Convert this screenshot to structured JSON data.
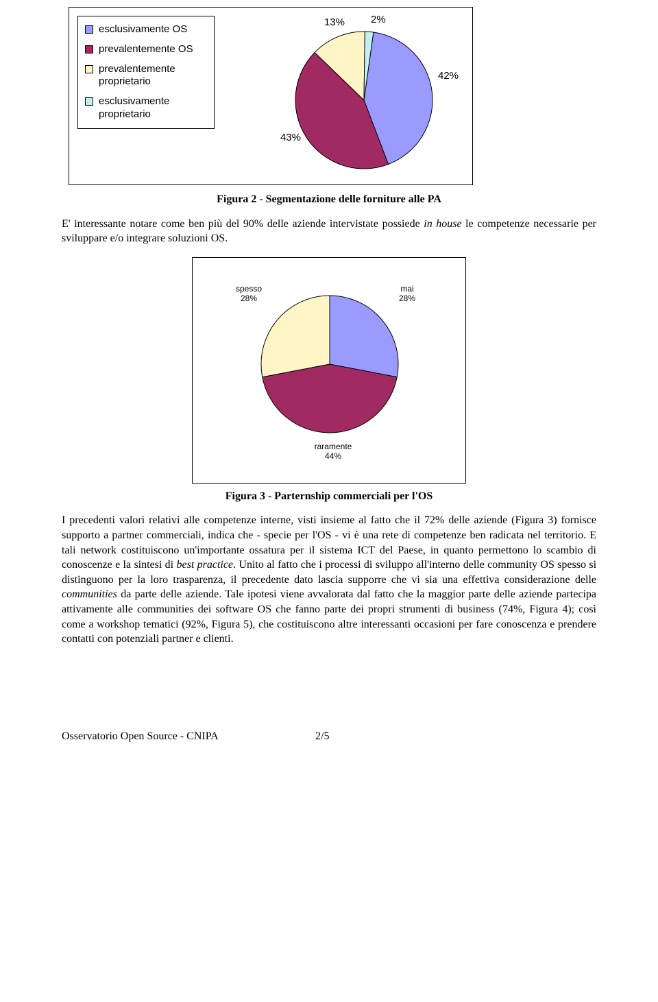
{
  "chart1": {
    "type": "pie",
    "legend": [
      {
        "label": "esclusivamente OS",
        "color": "#9b9bff"
      },
      {
        "label": "prevalentemente OS",
        "color": "#a12a63"
      },
      {
        "label": "prevalentemente proprietario",
        "color": "#fff5c6"
      },
      {
        "label": "esclusivamente proprietario",
        "color": "#c6f0f0"
      }
    ],
    "annotations": {
      "p13": "13%",
      "p2": "2%",
      "p42": "42%",
      "p43": "43%"
    },
    "slices": [
      {
        "value": 42,
        "color": "#9b9bff"
      },
      {
        "value": 43,
        "color": "#a12a63"
      },
      {
        "value": 13,
        "color": "#fff5c6"
      },
      {
        "value": 2,
        "color": "#c6f0f0"
      }
    ],
    "start_angle_deg": -82,
    "stroke": "#000000",
    "background": "#ffffff"
  },
  "caption1": "Figura 2 - Segmentazione delle forniture alle PA",
  "para1_a": "E' interessante notare come ben più del 90% delle aziende intervistate possiede ",
  "para1_b": "in house",
  "para1_c": " le competenze necessarie per sviluppare e/o integrare soluzioni OS.",
  "chart2": {
    "type": "pie",
    "annotations": {
      "spesso_l": "spesso",
      "spesso_v": "28%",
      "mai_l": "mai",
      "mai_v": "28%",
      "rar_l": "raramente",
      "rar_v": "44%"
    },
    "slices": [
      {
        "value": 28,
        "color": "#9b9bff"
      },
      {
        "value": 44,
        "color": "#a12a63"
      },
      {
        "value": 28,
        "color": "#fff5c6"
      }
    ],
    "start_angle_deg": -90,
    "stroke": "#000000",
    "background": "#ffffff"
  },
  "caption2": "Figura 3 - Parternship commerciali per l'OS",
  "para2_a": "I precedenti valori relativi alle competenze interne, visti insieme al fatto che il 72% delle aziende (Figura 3) fornisce supporto a partner commerciali, indica che - specie per l'OS - vi è una rete di competenze ben radicata nel territorio. E tali network costituiscono un'importante ossatura per il sistema ICT del Paese, in quanto permettono lo scambio di conoscenze e la sintesi di ",
  "para2_b": "best practice",
  "para2_c": ". Unito al fatto che i processi di sviluppo all'interno delle community OS spesso si distinguono per la loro trasparenza, il precedente dato lascia supporre che vi sia una effettiva considerazione delle ",
  "para2_d": "communities",
  "para2_e": " da parte delle aziende. Tale ipotesi viene avvalorata dal fatto che la maggior parte delle aziende partecipa attivamente alle communities dei software OS che fanno parte dei propri strumenti di business (74%, Figura 4); così come a workshop tematici (92%, Figura 5), che costituiscono altre interessanti occasioni per fare conoscenza e prendere contatti con potenziali partner e clienti.",
  "footer_left": "Osservatorio Open Source - CNIPA",
  "footer_right": "2/5"
}
